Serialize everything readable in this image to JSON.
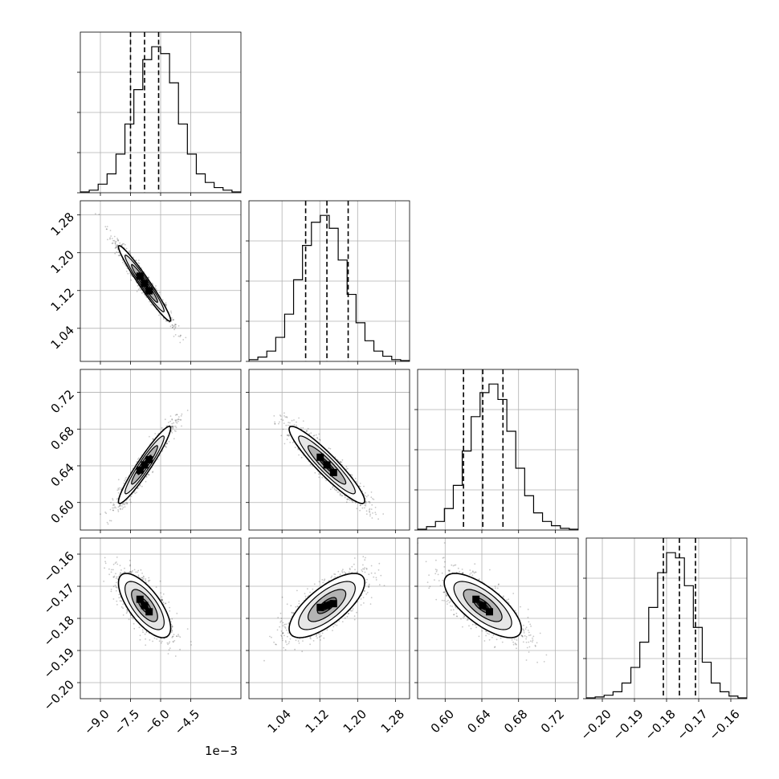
{
  "chart_data": {
    "type": "corner",
    "offset_label": "1e−3",
    "parameters": [
      {
        "range": [
          -10.0,
          -2.0
        ],
        "ticks": [
          -9.0,
          -7.5,
          -6.0,
          -4.5
        ],
        "tick_labels": [
          "−9.0",
          "−7.5",
          "−6.0",
          "−4.5"
        ],
        "mean": -6.8,
        "sigma": 0.65,
        "quantiles": [
          -7.5,
          -6.8,
          -6.1
        ],
        "hist_counts": [
          1,
          3,
          10,
          22,
          45,
          80,
          120,
          155,
          170,
          162,
          128,
          80,
          45,
          22,
          12,
          6,
          3,
          1
        ]
      },
      {
        "range": [
          0.97,
          1.31
        ],
        "ticks": [
          1.04,
          1.12,
          1.2,
          1.28
        ],
        "tick_labels": [
          "1.04",
          "1.12",
          "1.20",
          "1.28"
        ],
        "mean": 1.135,
        "sigma": 0.04,
        "quantiles": [
          1.09,
          1.135,
          1.18
        ],
        "hist_counts": [
          2,
          5,
          12,
          28,
          55,
          95,
          135,
          162,
          170,
          155,
          118,
          78,
          45,
          24,
          12,
          6,
          2,
          1
        ]
      },
      {
        "range": [
          0.57,
          0.745
        ],
        "ticks": [
          0.6,
          0.64,
          0.68,
          0.72
        ],
        "tick_labels": [
          "0.60",
          "0.64",
          "0.68",
          "0.72"
        ],
        "mean": 0.641,
        "sigma": 0.021,
        "quantiles": [
          0.62,
          0.641,
          0.663
        ],
        "hist_counts": [
          1,
          4,
          10,
          25,
          52,
          92,
          132,
          160,
          170,
          152,
          115,
          72,
          40,
          20,
          10,
          5,
          2,
          1
        ]
      },
      {
        "range": [
          -0.205,
          -0.155
        ],
        "ticks": [
          -0.2,
          -0.19,
          -0.18,
          -0.17,
          -0.16
        ],
        "tick_labels": [
          "−0.20",
          "−0.19",
          "−0.18",
          "−0.17",
          "−0.16"
        ],
        "mean": -0.176,
        "sigma": 0.005,
        "quantiles": [
          -0.181,
          -0.176,
          -0.171
        ],
        "hist_counts": [
          1,
          2,
          4,
          8,
          18,
          36,
          65,
          105,
          145,
          168,
          162,
          130,
          82,
          42,
          18,
          8,
          3,
          1
        ]
      }
    ],
    "correlations": {
      "1-0": -0.97,
      "2-0": 0.95,
      "2-1": -0.93,
      "3-0": -0.7,
      "3-1": 0.72,
      "3-2": -0.72
    },
    "contour_levels_sigma": [
      0.5,
      1.0,
      1.5,
      2.0
    ],
    "grid": true,
    "quantile_style": "dashed"
  }
}
